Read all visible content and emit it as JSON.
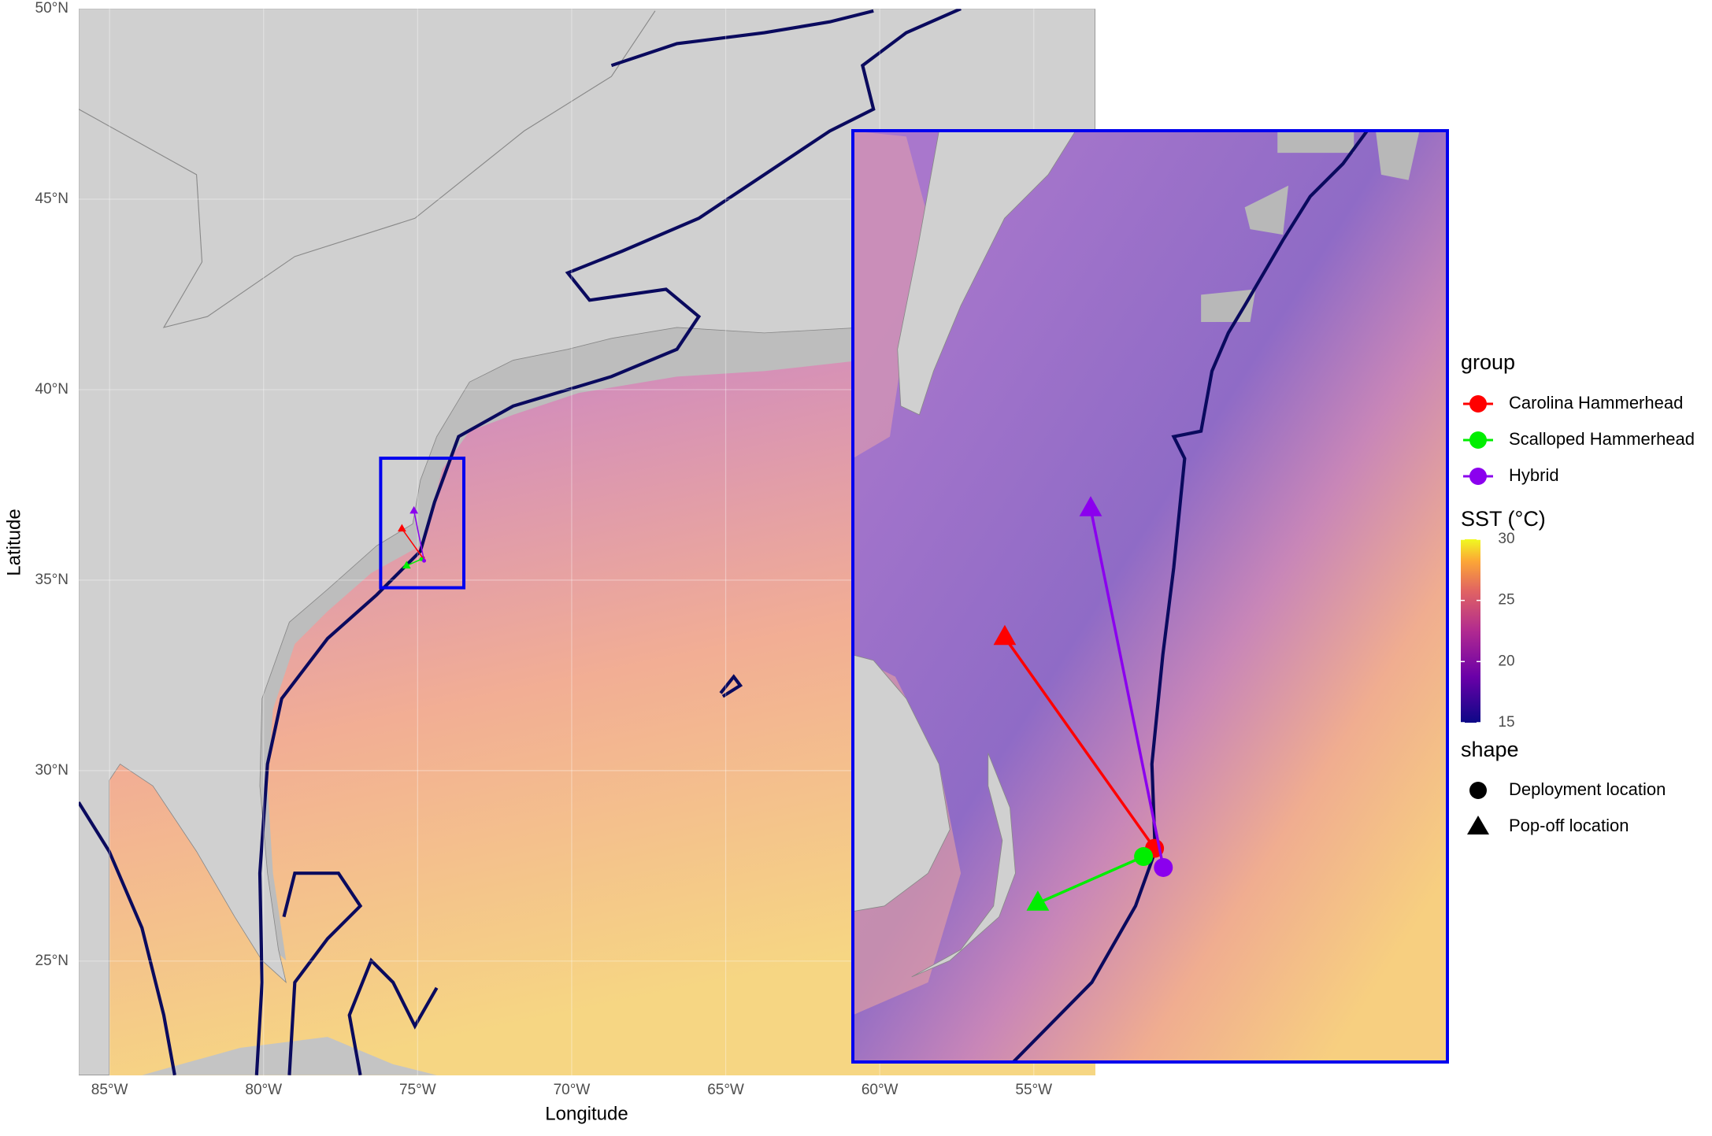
{
  "map": {
    "xlabel": "Longitude",
    "ylabel": "Latitude",
    "xlim": [
      -86,
      -53
    ],
    "ylim": [
      22,
      50
    ],
    "xticks": [
      {
        "value": -85,
        "label": "85°W"
      },
      {
        "value": -80,
        "label": "80°W"
      },
      {
        "value": -75,
        "label": "75°W"
      },
      {
        "value": -70,
        "label": "70°W"
      },
      {
        "value": -65,
        "label": "65°W"
      },
      {
        "value": -60,
        "label": "60°W"
      },
      {
        "value": -55,
        "label": "55°W"
      }
    ],
    "yticks": [
      {
        "value": 25,
        "label": "25°N"
      },
      {
        "value": 30,
        "label": "30°N"
      },
      {
        "value": 35,
        "label": "35°N"
      },
      {
        "value": 40,
        "label": "40°N"
      },
      {
        "value": 45,
        "label": "45°N"
      },
      {
        "value": 50,
        "label": "50°N"
      }
    ],
    "inset": {
      "xlim": [
        -76.2,
        -73.5
      ],
      "ylim": [
        34.8,
        38.2
      ],
      "color": "#0000ee"
    },
    "tracks": [
      {
        "name": "Carolina Hammerhead",
        "color": "#ff0000",
        "deployment": {
          "lon": -74.83,
          "lat": 35.58
        },
        "popoff": {
          "lon": -75.51,
          "lat": 36.35
        }
      },
      {
        "name": "Scalloped Hammerhead",
        "color": "#00ee00",
        "deployment": {
          "lon": -74.88,
          "lat": 35.55
        },
        "popoff": {
          "lon": -75.36,
          "lat": 35.38
        }
      },
      {
        "name": "Hybrid",
        "color": "#8b00ee",
        "deployment": {
          "lon": -74.79,
          "lat": 35.51
        },
        "popoff": {
          "lon": -75.12,
          "lat": 36.82
        }
      }
    ],
    "legend": {
      "group_title": "group",
      "sst_title": "SST (°C)",
      "sst_lim": [
        15,
        30
      ],
      "sst_ticks": [
        15,
        20,
        25,
        30
      ],
      "shape_title": "shape",
      "shapes": [
        "Deployment location",
        "Pop-off location"
      ]
    }
  }
}
